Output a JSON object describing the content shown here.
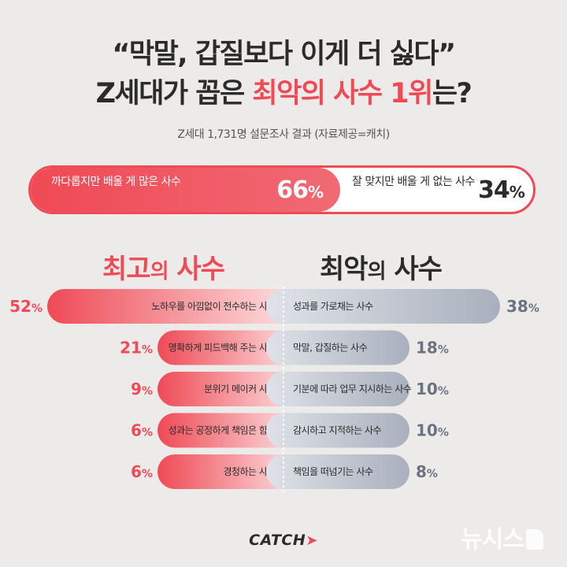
{
  "header": {
    "title_line1": "“막말, 갑질보다 이게 더 싫다”",
    "title_line2_pre": "Z세대가 꼽은 ",
    "title_line2_highlight": "최악의 사수 1위",
    "title_line2_post": "는?",
    "subtitle": "Z세대 1,731명 설문조사 결과 (자료제공=캐치)"
  },
  "split": {
    "left_label": "까다롭지만 배울 게 많은 사수",
    "left_value": 66,
    "right_label": "잘 맞지만 배울 게 없는 사수",
    "right_value": 34,
    "unit": "%"
  },
  "headings": {
    "best_main": "최고",
    "best_small": "의",
    "best_tail": " 사수",
    "worst_main": "최악",
    "worst_small": "의",
    "worst_tail": " 사수"
  },
  "chart_data": {
    "type": "bar",
    "unit": "%",
    "best": [
      {
        "label": "노하우를 아낌없이 전수하는 사수",
        "value": 52
      },
      {
        "label": "명확하게 피드백해 주는 사수",
        "value": 21
      },
      {
        "label": "분위기 메이커 사수",
        "value": 9
      },
      {
        "label": "성과는 공정하게 책임은 함께",
        "value": 6
      },
      {
        "label": "경청하는 사수",
        "value": 6
      }
    ],
    "worst": [
      {
        "label": "성과를 가로채는 사수",
        "value": 38
      },
      {
        "label": "막말, 갑질하는 사수",
        "value": 18
      },
      {
        "label": "기분에 따라 업무 지시하는 사수",
        "value": 10
      },
      {
        "label": "감시하고 지적하는 사수",
        "value": 10
      },
      {
        "label": "책임을 떠넘기는 사수",
        "value": 8
      }
    ],
    "colors": {
      "best": "#ef4a55",
      "worst": "#a9b0bd"
    }
  },
  "footer": {
    "logo": "CATCH",
    "watermark": "뉴시스"
  }
}
